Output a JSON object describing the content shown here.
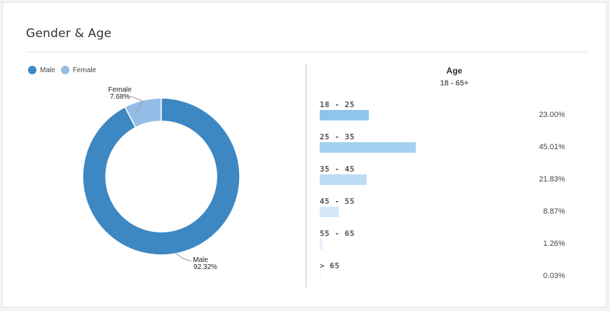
{
  "header": {
    "title": "Gender & Age"
  },
  "chart_data": [
    {
      "type": "pie",
      "variant": "donut",
      "categories": [
        "Male",
        "Female"
      ],
      "values": [
        92.32,
        7.68
      ],
      "value_labels": [
        "92.32%",
        "7.68%"
      ],
      "colors": [
        "#3d87c2",
        "#93bde6"
      ],
      "legend": [
        "Male",
        "Female"
      ],
      "legend_position": "top-left"
    },
    {
      "type": "bar",
      "orientation": "horizontal",
      "title": "Age",
      "subtitle": "18 - 65+",
      "categories": [
        "18 - 25",
        "25 - 35",
        "35 - 45",
        "45 - 55",
        "55 - 65",
        "> 65"
      ],
      "values": [
        23.0,
        45.01,
        21.83,
        8.87,
        1.26,
        0.03
      ],
      "value_labels": [
        "23.00%",
        "45.01%",
        "21.83%",
        "8.87%",
        "1.26%",
        "0.03%"
      ],
      "colors": [
        "#8ec5ea",
        "#a4d1f0",
        "#bcdcf4",
        "#d4e8f8",
        "#e6f0fb",
        "#f0f6fc"
      ]
    }
  ]
}
